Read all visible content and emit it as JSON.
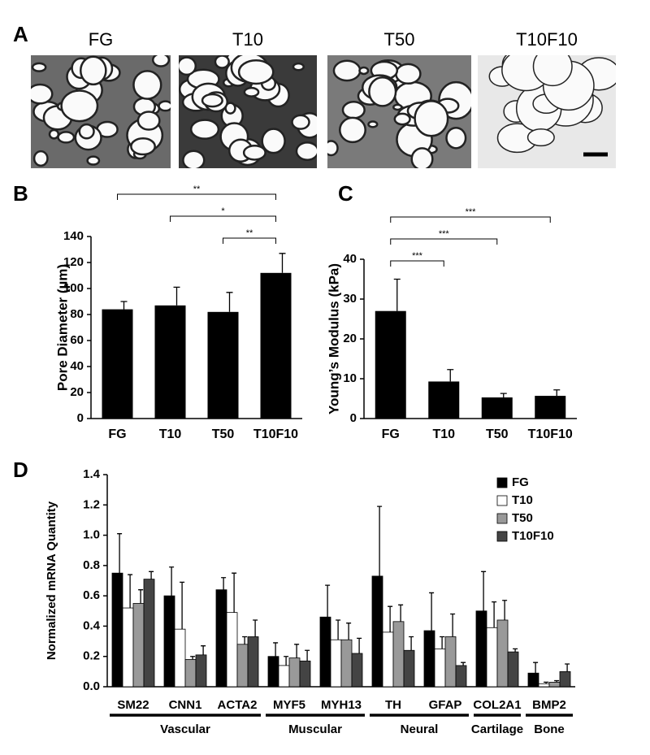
{
  "panels": [
    "A",
    "B",
    "C",
    "D"
  ],
  "images": {
    "labels": [
      "FG",
      "T10",
      "T50",
      "T10F10"
    ]
  },
  "chart_data": [
    {
      "type": "bar",
      "ylabel": "Pore Diameter (µm)",
      "categories": [
        "FG",
        "T10",
        "T50",
        "T10F10"
      ],
      "values": [
        84,
        87,
        82,
        112
      ],
      "errors": [
        6,
        14,
        15,
        15
      ],
      "color": "#000000",
      "ylim": [
        0,
        140
      ],
      "yticks": [
        0,
        20,
        40,
        60,
        80,
        100,
        120,
        140
      ],
      "brackets": [
        {
          "between": [
            "FG",
            "T10F10"
          ],
          "label": "**"
        },
        {
          "between": [
            "T10",
            "T10F10"
          ],
          "label": "*"
        },
        {
          "between": [
            "T50",
            "T10F10"
          ],
          "label": "**"
        }
      ]
    },
    {
      "type": "bar",
      "ylabel": "Young’s Modulus (kPa)",
      "categories": [
        "FG",
        "T10",
        "T50",
        "T10F10"
      ],
      "values": [
        27,
        9.3,
        5.3,
        5.7
      ],
      "errors": [
        8,
        3,
        1,
        1.5
      ],
      "color": "#000000",
      "ylim": [
        0,
        40
      ],
      "yticks": [
        0,
        10,
        20,
        30,
        40
      ],
      "brackets": [
        {
          "between": [
            "FG",
            "T10F10"
          ],
          "label": "***"
        },
        {
          "between": [
            "FG",
            "T50"
          ],
          "label": "***"
        },
        {
          "between": [
            "FG",
            "T10"
          ],
          "label": "***"
        }
      ]
    },
    {
      "type": "grouped_bar",
      "ylabel": "Normalized mRNA Quantity",
      "categories": [
        "SM22",
        "CNN1",
        "ACTA2",
        "MYF5",
        "MYH13",
        "TH",
        "GFAP",
        "COL2A1",
        "BMP2"
      ],
      "groups": [
        {
          "name": "Vascular",
          "categories": [
            "SM22",
            "CNN1",
            "ACTA2"
          ]
        },
        {
          "name": "Muscular",
          "categories": [
            "MYF5",
            "MYH13"
          ]
        },
        {
          "name": "Neural",
          "categories": [
            "TH",
            "GFAP"
          ]
        },
        {
          "name": "Cartilage",
          "categories": [
            "COL2A1"
          ]
        },
        {
          "name": "Bone",
          "categories": [
            "BMP2"
          ]
        }
      ],
      "series": [
        {
          "name": "FG",
          "color": "#000000",
          "values": [
            0.75,
            0.6,
            0.64,
            0.2,
            0.46,
            0.73,
            0.37,
            0.5,
            0.09
          ],
          "errors": [
            0.26,
            0.19,
            0.08,
            0.09,
            0.21,
            0.46,
            0.25,
            0.26,
            0.07
          ]
        },
        {
          "name": "T10",
          "color": "#ffffff",
          "values": [
            0.52,
            0.38,
            0.49,
            0.14,
            0.31,
            0.36,
            0.25,
            0.39,
            0.02
          ],
          "errors": [
            0.22,
            0.31,
            0.26,
            0.06,
            0.13,
            0.17,
            0.08,
            0.17,
            0.01
          ]
        },
        {
          "name": "T50",
          "color": "#999999",
          "values": [
            0.55,
            0.18,
            0.28,
            0.19,
            0.31,
            0.43,
            0.33,
            0.44,
            0.03
          ],
          "errors": [
            0.09,
            0.02,
            0.05,
            0.09,
            0.11,
            0.11,
            0.15,
            0.13,
            0.01
          ]
        },
        {
          "name": "T10F10",
          "color": "#444444",
          "values": [
            0.71,
            0.21,
            0.33,
            0.17,
            0.22,
            0.24,
            0.14,
            0.23,
            0.1
          ],
          "errors": [
            0.05,
            0.06,
            0.11,
            0.07,
            0.1,
            0.09,
            0.02,
            0.02,
            0.05
          ]
        }
      ],
      "ylim": [
        0,
        1.4
      ],
      "yticks": [
        {
          "value": 0,
          "label": "0.0"
        },
        0.2,
        0.4,
        0.6,
        0.8,
        {
          "value": 1,
          "label": "1.0"
        },
        1.2,
        1.4
      ],
      "legend": "top-right"
    }
  ]
}
